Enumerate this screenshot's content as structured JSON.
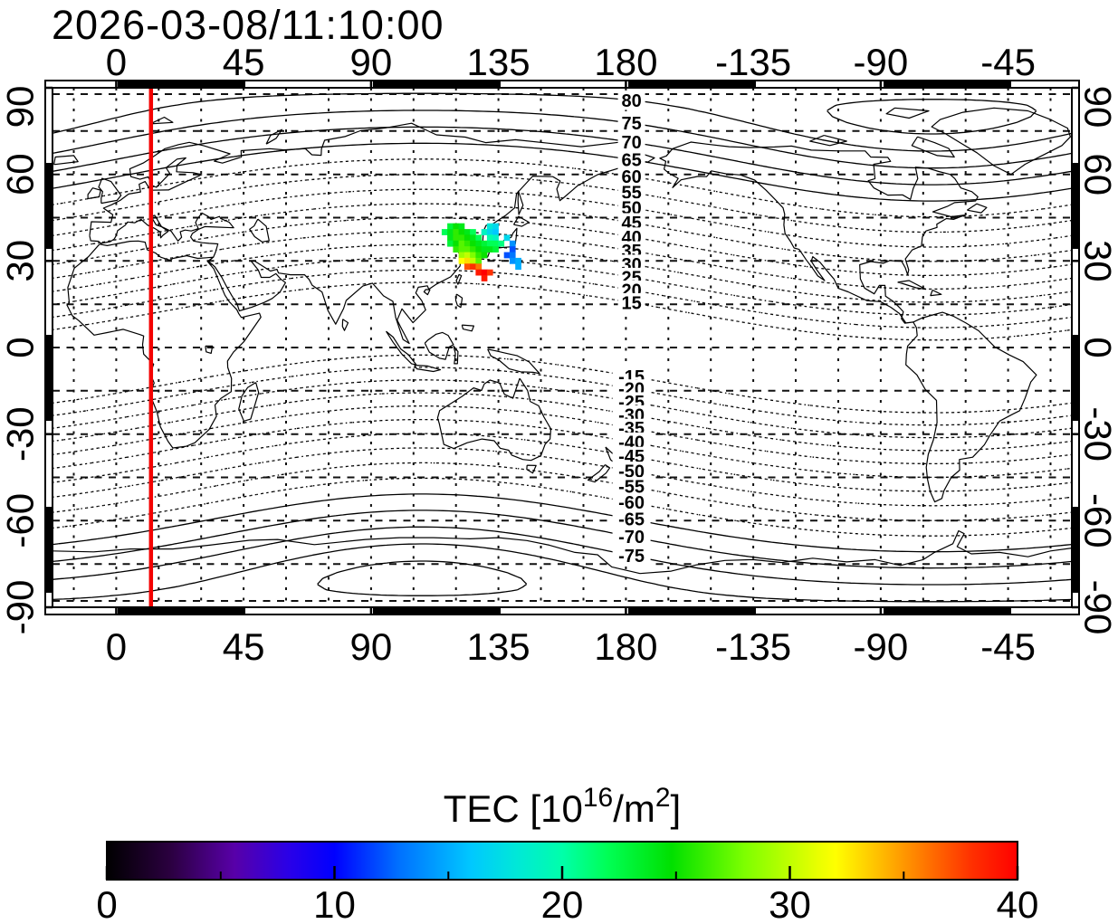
{
  "chart_data": {
    "type": "map-heatmap",
    "title": "2026-03-08/11:10:00",
    "projection": "equirectangular",
    "xlim": [
      -22.5,
      337.5
    ],
    "ylim": [
      -90,
      90
    ],
    "lon_ticks": [
      0,
      45,
      90,
      135,
      180,
      -135,
      -90,
      -45
    ],
    "lat_ticks": [
      90,
      60,
      30,
      0,
      -30,
      -60,
      -90
    ],
    "grid_step_deg": 15,
    "red_meridian_lon": 12.3,
    "contours": {
      "quantity": "magnetic-dip-latitude",
      "step": 5,
      "labeled_levels": [
        80,
        75,
        70,
        65,
        60,
        55,
        50,
        45,
        40,
        35,
        30,
        25,
        20,
        15,
        -15,
        -20,
        -25,
        -30,
        -35,
        -40,
        -45,
        -50,
        -55,
        -60,
        -65,
        -70,
        -75
      ],
      "max_abs_level": 85,
      "solid_abs_min": 65,
      "label_lon": 182
    },
    "colorbar": {
      "title_parts": {
        "main": "TEC  [10",
        "sup1": "16",
        "mid": "/m",
        "sup2": "2",
        "end": "]"
      },
      "range": [
        0,
        40
      ],
      "ticks": [
        0,
        10,
        20,
        30,
        40
      ],
      "minor_tick_step": 5,
      "stops": [
        [
          0.0,
          "#000000"
        ],
        [
          0.07,
          "#2b0040"
        ],
        [
          0.14,
          "#5800a8"
        ],
        [
          0.2,
          "#2a00e8"
        ],
        [
          0.25,
          "#0000ff"
        ],
        [
          0.32,
          "#0070ff"
        ],
        [
          0.4,
          "#00c8ff"
        ],
        [
          0.45,
          "#00e8d8"
        ],
        [
          0.5,
          "#00ffaa"
        ],
        [
          0.55,
          "#00ff55"
        ],
        [
          0.62,
          "#00e000"
        ],
        [
          0.7,
          "#7dff00"
        ],
        [
          0.78,
          "#e8ff00"
        ],
        [
          0.8,
          "#ffff00"
        ],
        [
          0.85,
          "#ffbb00"
        ],
        [
          0.9,
          "#ff7400"
        ],
        [
          0.95,
          "#ff3000"
        ],
        [
          1.0,
          "#ff0000"
        ]
      ]
    },
    "tec_points": [
      [
        118,
        42,
        23
      ],
      [
        120,
        42,
        25
      ],
      [
        122,
        42,
        24
      ],
      [
        132,
        42,
        18
      ],
      [
        134,
        42,
        17
      ],
      [
        116,
        40,
        22
      ],
      [
        118,
        40,
        24
      ],
      [
        120,
        40,
        26
      ],
      [
        122,
        40,
        25
      ],
      [
        124,
        40,
        24
      ],
      [
        126,
        40,
        22
      ],
      [
        130,
        40,
        19
      ],
      [
        132,
        40,
        17
      ],
      [
        134,
        40,
        16
      ],
      [
        118,
        38,
        24
      ],
      [
        120,
        38,
        26
      ],
      [
        122,
        38,
        26
      ],
      [
        124,
        38,
        25
      ],
      [
        126,
        38,
        24
      ],
      [
        128,
        38,
        22
      ],
      [
        132,
        38,
        20
      ],
      [
        134,
        38,
        19
      ],
      [
        138,
        38,
        17
      ],
      [
        118,
        36,
        23
      ],
      [
        120,
        36,
        25
      ],
      [
        122,
        36,
        27
      ],
      [
        124,
        36,
        26
      ],
      [
        126,
        36,
        25
      ],
      [
        128,
        36,
        24
      ],
      [
        130,
        36,
        23
      ],
      [
        132,
        36,
        22
      ],
      [
        134,
        36,
        22
      ],
      [
        136,
        36,
        21
      ],
      [
        140,
        36,
        14
      ],
      [
        120,
        34,
        26
      ],
      [
        122,
        34,
        27
      ],
      [
        124,
        34,
        27
      ],
      [
        126,
        34,
        26
      ],
      [
        128,
        34,
        25
      ],
      [
        130,
        34,
        24
      ],
      [
        132,
        34,
        24
      ],
      [
        134,
        34,
        23
      ],
      [
        140,
        34,
        12
      ],
      [
        122,
        32,
        29
      ],
      [
        124,
        32,
        30
      ],
      [
        126,
        32,
        28
      ],
      [
        128,
        32,
        26
      ],
      [
        130,
        32,
        25
      ],
      [
        138,
        32,
        12
      ],
      [
        140,
        32,
        13
      ],
      [
        122,
        30,
        32
      ],
      [
        124,
        30,
        33
      ],
      [
        126,
        30,
        30
      ],
      [
        128,
        30,
        27
      ],
      [
        140,
        30,
        14
      ],
      [
        142,
        30,
        15
      ],
      [
        124,
        28,
        37
      ],
      [
        126,
        28,
        38
      ],
      [
        128,
        28,
        36
      ],
      [
        142,
        28,
        15
      ],
      [
        128,
        26,
        39
      ],
      [
        130,
        26,
        40
      ],
      [
        132,
        26,
        38
      ],
      [
        130,
        24,
        39
      ]
    ]
  }
}
